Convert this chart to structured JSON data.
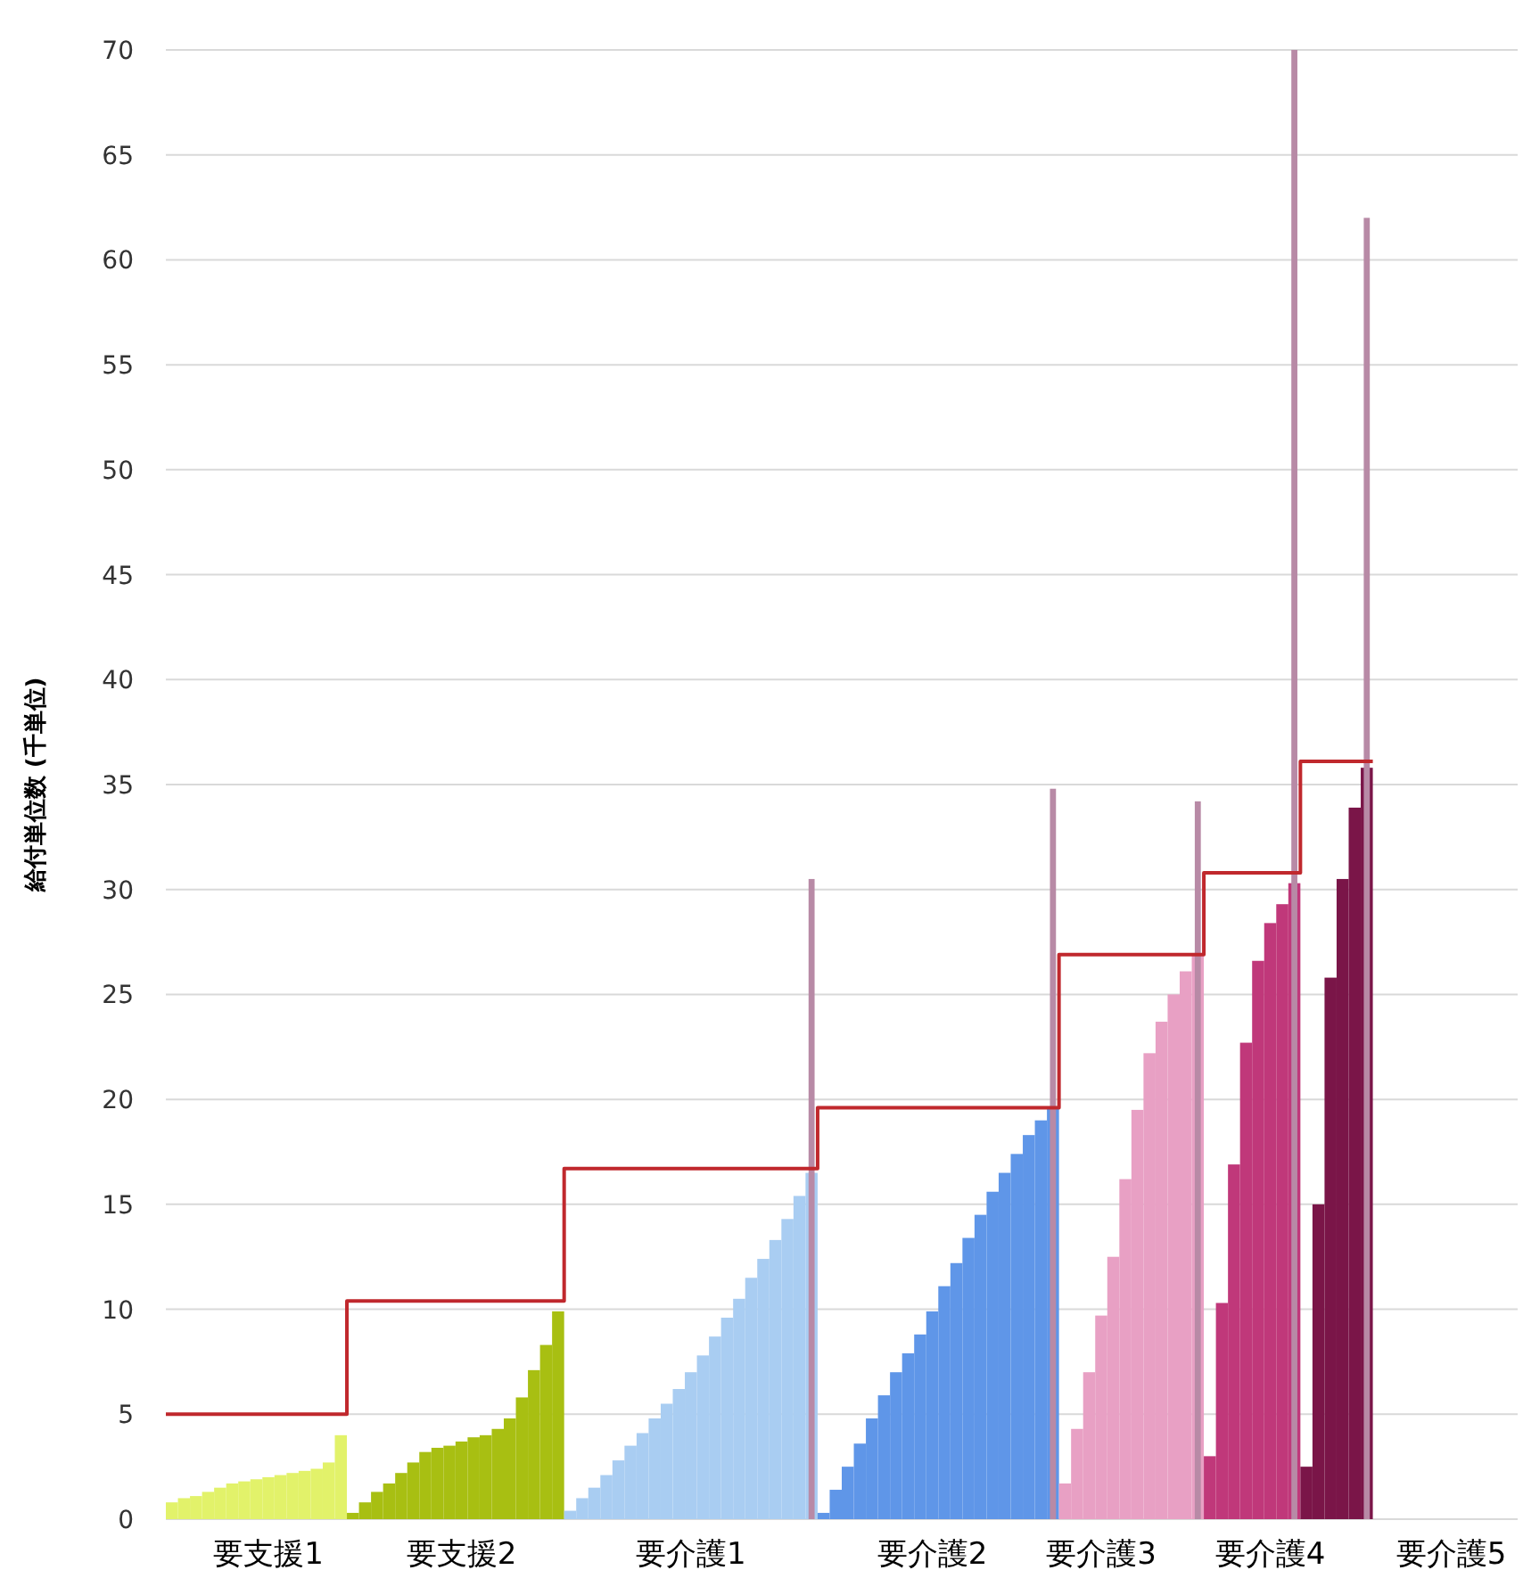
{
  "chart_data": {
    "type": "bar",
    "ylabel": "給付単位数 (千単位)",
    "ylim": [
      0,
      70
    ],
    "categories": [
      null,
      null,
      null,
      null,
      null,
      null,
      null,
      null,
      "要支援1",
      null,
      null,
      null,
      null,
      null,
      null,
      null,
      null,
      null,
      null,
      null,
      null,
      null,
      null,
      null,
      "要支援2",
      null,
      null,
      null,
      null,
      null,
      null,
      null,
      null,
      null,
      null,
      null,
      null,
      null,
      null,
      null,
      null,
      null,
      null,
      "要介護1",
      null,
      null,
      null,
      null,
      null,
      null,
      null,
      null,
      null,
      null,
      null,
      null,
      null,
      null,
      null,
      null,
      null,
      null,
      null,
      "要介護2",
      null,
      null,
      null,
      null,
      null,
      null,
      null,
      null,
      null,
      null,
      null,
      null,
      null,
      "要介護3",
      null,
      null,
      null,
      null,
      null,
      null,
      null,
      null,
      null,
      null,
      null,
      null,
      null,
      "要介護4",
      null,
      null,
      null,
      null,
      null,
      null,
      null,
      null,
      null,
      null,
      null,
      null,
      null,
      null,
      "要介護5",
      null,
      null,
      null,
      null,
      null
    ],
    "yticks": [
      0,
      5,
      10,
      15,
      20,
      25,
      30,
      35,
      40,
      45,
      50,
      55,
      60,
      65,
      70
    ],
    "grid": "y",
    "series": [
      {
        "color": "#b88aa6",
        "values": [
          null,
          null,
          null,
          null,
          null,
          null,
          null,
          null,
          null,
          null,
          null,
          null,
          null,
          null,
          null,
          null,
          null,
          null,
          null,
          null,
          null,
          null,
          null,
          null,
          null,
          null,
          null,
          null,
          null,
          null,
          null,
          null,
          null,
          null,
          null,
          null,
          null,
          null,
          null,
          null,
          null,
          null,
          null,
          null,
          null,
          null,
          null,
          null,
          null,
          null,
          null,
          null,
          null,
          30.5,
          null,
          null,
          null,
          null,
          null,
          null,
          null,
          null,
          null,
          null,
          null,
          null,
          null,
          null,
          null,
          null,
          null,
          null,
          null,
          34.8,
          null,
          null,
          null,
          null,
          null,
          null,
          null,
          null,
          null,
          null,
          null,
          34.2,
          null,
          null,
          null,
          null,
          null,
          null,
          null,
          70,
          null,
          null,
          null,
          null,
          null,
          62,
          null,
          null,
          null,
          null,
          null,
          null,
          null,
          null,
          null,
          null,
          null,
          null
        ]
      },
      {
        "values": [
          0.8,
          1.0,
          1.1,
          1.3,
          1.5,
          1.7,
          1.8,
          1.9,
          2.0,
          2.1,
          2.2,
          2.3,
          2.4,
          2.7,
          4.0,
          0.3,
          0.8,
          1.3,
          1.7,
          2.2,
          2.7,
          3.2,
          3.4,
          3.5,
          3.7,
          3.9,
          4.0,
          4.3,
          4.8,
          5.8,
          7.1,
          8.3,
          9.9,
          0.4,
          1.0,
          1.5,
          2.1,
          2.8,
          3.5,
          4.1,
          4.8,
          5.5,
          6.2,
          7.0,
          7.8,
          8.7,
          9.6,
          10.5,
          11.5,
          12.4,
          13.3,
          14.3,
          15.4,
          16.5,
          0.3,
          1.4,
          2.5,
          3.6,
          4.8,
          5.9,
          7.0,
          7.9,
          8.8,
          9.9,
          11.1,
          12.2,
          13.4,
          14.5,
          15.6,
          16.5,
          17.4,
          18.3,
          19.0,
          19.6,
          1.7,
          4.3,
          7.0,
          9.7,
          12.5,
          16.2,
          19.5,
          22.2,
          23.7,
          25.0,
          26.1,
          26.9,
          3.0,
          10.3,
          16.9,
          22.7,
          26.6,
          28.4,
          29.3,
          30.3,
          2.5,
          15,
          25.8,
          30.5,
          33.9,
          35.8,
          null,
          null,
          null,
          null,
          null,
          null,
          null,
          null,
          null,
          null,
          null,
          null
        ],
        "colors": [
          "#e2f26a",
          "#e2f26a",
          "#e2f26a",
          "#e2f26a",
          "#e2f26a",
          "#e2f26a",
          "#e2f26a",
          "#e2f26a",
          "#e2f26a",
          "#e2f26a",
          "#e2f26a",
          "#e2f26a",
          "#e2f26a",
          "#e2f26a",
          "#e2f26a",
          "#a8bf12",
          "#a8bf12",
          "#a8bf12",
          "#a8bf12",
          "#a8bf12",
          "#a8bf12",
          "#a8bf12",
          "#a8bf12",
          "#a8bf12",
          "#a8bf12",
          "#a8bf12",
          "#a8bf12",
          "#a8bf12",
          "#a8bf12",
          "#a8bf12",
          "#a8bf12",
          "#a8bf12",
          "#a8bf12",
          "#a9cdf2",
          "#a9cdf2",
          "#a9cdf2",
          "#a9cdf2",
          "#a9cdf2",
          "#a9cdf2",
          "#a9cdf2",
          "#a9cdf2",
          "#a9cdf2",
          "#a9cdf2",
          "#a9cdf2",
          "#a9cdf2",
          "#a9cdf2",
          "#a9cdf2",
          "#a9cdf2",
          "#a9cdf2",
          "#a9cdf2",
          "#a9cdf2",
          "#a9cdf2",
          "#a9cdf2",
          "#a9cdf2",
          "#5f96e8",
          "#5f96e8",
          "#5f96e8",
          "#5f96e8",
          "#5f96e8",
          "#5f96e8",
          "#5f96e8",
          "#5f96e8",
          "#5f96e8",
          "#5f96e8",
          "#5f96e8",
          "#5f96e8",
          "#5f96e8",
          "#5f96e8",
          "#5f96e8",
          "#5f96e8",
          "#5f96e8",
          "#5f96e8",
          "#5f96e8",
          "#5f96e8",
          "#e8a0c4",
          "#e8a0c4",
          "#e8a0c4",
          "#e8a0c4",
          "#e8a0c4",
          "#e8a0c4",
          "#e8a0c4",
          "#e8a0c4",
          "#e8a0c4",
          "#e8a0c4",
          "#e8a0c4",
          "#e8a0c4",
          "#c0387a",
          "#c0387a",
          "#c0387a",
          "#c0387a",
          "#c0387a",
          "#c0387a",
          "#c0387a",
          "#c0387a",
          "#7a1548",
          "#7a1548",
          "#7a1548",
          "#7a1548",
          "#7a1548",
          "#7a1548",
          null,
          null,
          null,
          null,
          null,
          null,
          null,
          null,
          null,
          null,
          null,
          null
        ]
      },
      {
        "type": "step",
        "color": "#c0282d",
        "values": [
          5,
          5,
          5,
          5,
          5,
          5,
          5,
          5,
          5,
          5,
          5,
          5,
          5,
          5,
          5,
          10.4,
          10.4,
          10.4,
          10.4,
          10.4,
          10.4,
          10.4,
          10.4,
          10.4,
          10.4,
          10.4,
          10.4,
          10.4,
          10.4,
          10.4,
          10.4,
          10.4,
          10.4,
          16.7,
          16.7,
          16.7,
          16.7,
          16.7,
          16.7,
          16.7,
          16.7,
          16.7,
          16.7,
          16.7,
          16.7,
          16.7,
          16.7,
          16.7,
          16.7,
          16.7,
          16.7,
          16.7,
          16.7,
          16.7,
          19.6,
          19.6,
          19.6,
          19.6,
          19.6,
          19.6,
          19.6,
          19.6,
          19.6,
          19.6,
          19.6,
          19.6,
          19.6,
          19.6,
          19.6,
          19.6,
          19.6,
          19.6,
          19.6,
          19.6,
          26.9,
          26.9,
          26.9,
          26.9,
          26.9,
          26.9,
          26.9,
          26.9,
          26.9,
          26.9,
          26.9,
          26.9,
          30.8,
          30.8,
          30.8,
          30.8,
          30.8,
          30.8,
          30.8,
          30.8,
          36.1,
          36.1,
          36.1,
          36.1,
          36.1,
          36.1,
          null,
          null,
          null,
          null,
          null,
          null,
          null,
          null,
          null,
          null,
          null,
          null
        ]
      }
    ]
  }
}
